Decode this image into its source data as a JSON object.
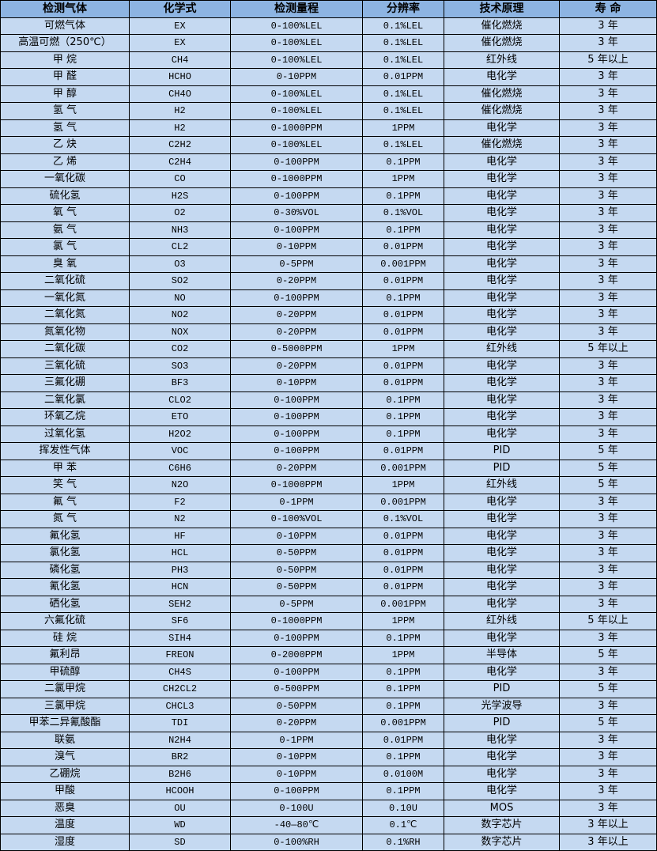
{
  "table": {
    "headers": [
      "检测气体",
      "化学式",
      "检测量程",
      "分辨率",
      "技术原理",
      "寿 命"
    ],
    "rows": [
      [
        "可燃气体",
        "EX",
        "0-100%LEL",
        "0.1%LEL",
        "催化燃烧",
        "3 年"
      ],
      [
        "高温可燃（250℃）",
        "EX",
        "0-100%LEL",
        "0.1%LEL",
        "催化燃烧",
        "3 年"
      ],
      [
        "甲 烷",
        "CH4",
        "0-100%LEL",
        "0.1%LEL",
        "红外线",
        "5 年以上"
      ],
      [
        "甲 醛",
        "HCHO",
        "0-10PPM",
        "0.01PPM",
        "电化学",
        "3 年"
      ],
      [
        "甲 醇",
        "CH4O",
        "0-100%LEL",
        "0.1%LEL",
        "催化燃烧",
        "3 年"
      ],
      [
        "氢 气",
        "H2",
        "0-100%LEL",
        "0.1%LEL",
        "催化燃烧",
        "3 年"
      ],
      [
        "氢 气",
        "H2",
        "0-1000PPM",
        "1PPM",
        "电化学",
        "3 年"
      ],
      [
        "乙 炔",
        "C2H2",
        "0-100%LEL",
        "0.1%LEL",
        "催化燃烧",
        "3 年"
      ],
      [
        "乙 烯",
        "C2H4",
        "0-100PPM",
        "0.1PPM",
        "电化学",
        "3 年"
      ],
      [
        "一氧化碳",
        "CO",
        "0-1000PPM",
        "1PPM",
        "电化学",
        "3 年"
      ],
      [
        "硫化氢",
        "H2S",
        "0-100PPM",
        "0.1PPM",
        "电化学",
        "3 年"
      ],
      [
        "氧 气",
        "O2",
        "0-30%VOL",
        "0.1%VOL",
        "电化学",
        "3 年"
      ],
      [
        "氨 气",
        "NH3",
        "0-100PPM",
        "0.1PPM",
        "电化学",
        "3 年"
      ],
      [
        "氯 气",
        "CL2",
        "0-10PPM",
        "0.01PPM",
        "电化学",
        "3 年"
      ],
      [
        "臭 氧",
        "O3",
        "0-5PPM",
        "0.001PPM",
        "电化学",
        "3 年"
      ],
      [
        "二氧化硫",
        "SO2",
        "0-20PPM",
        "0.01PPM",
        "电化学",
        "3 年"
      ],
      [
        "一氧化氮",
        "NO",
        "0-100PPM",
        "0.1PPM",
        "电化学",
        "3 年"
      ],
      [
        "二氧化氮",
        "NO2",
        "0-20PPM",
        "0.01PPM",
        "电化学",
        "3 年"
      ],
      [
        "氮氧化物",
        "NOX",
        "0-20PPM",
        "0.01PPM",
        "电化学",
        "3 年"
      ],
      [
        "二氧化碳",
        "CO2",
        "0-5000PPM",
        "1PPM",
        "红外线",
        "5 年以上"
      ],
      [
        "三氧化硫",
        "SO3",
        "0-20PPM",
        "0.01PPM",
        "电化学",
        "3 年"
      ],
      [
        "三氟化硼",
        "BF3",
        "0-10PPM",
        "0.01PPM",
        "电化学",
        "3 年"
      ],
      [
        "二氧化氯",
        "CLO2",
        "0-100PPM",
        "0.1PPM",
        "电化学",
        "3 年"
      ],
      [
        "环氧乙烷",
        "ETO",
        "0-100PPM",
        "0.1PPM",
        "电化学",
        "3 年"
      ],
      [
        "过氧化氢",
        "H2O2",
        "0-100PPM",
        "0.1PPM",
        "电化学",
        "3 年"
      ],
      [
        "挥发性气体",
        "VOC",
        "0-100PPM",
        "0.01PPM",
        "PID",
        "5 年"
      ],
      [
        "甲 苯",
        "C6H6",
        "0-20PPM",
        "0.001PPM",
        "PID",
        "5 年"
      ],
      [
        "笑 气",
        "N2O",
        "0-1000PPM",
        "1PPM",
        "红外线",
        "5 年"
      ],
      [
        "氟 气",
        "F2",
        "0-1PPM",
        "0.001PPM",
        "电化学",
        "3 年"
      ],
      [
        "氮 气",
        "N2",
        "0-100%VOL",
        "0.1%VOL",
        "电化学",
        "3 年"
      ],
      [
        "氟化氢",
        "HF",
        "0-10PPM",
        "0.01PPM",
        "电化学",
        "3 年"
      ],
      [
        "氯化氢",
        "HCL",
        "0-50PPM",
        "0.01PPM",
        "电化学",
        "3 年"
      ],
      [
        "磷化氢",
        "PH3",
        "0-50PPM",
        "0.01PPM",
        "电化学",
        "3 年"
      ],
      [
        "氰化氢",
        "HCN",
        "0-50PPM",
        "0.01PPM",
        "电化学",
        "3 年"
      ],
      [
        "硒化氢",
        "SEH2",
        "0-5PPM",
        "0.001PPM",
        "电化学",
        "3 年"
      ],
      [
        "六氟化硫",
        "SF6",
        "0-1000PPM",
        "1PPM",
        "红外线",
        "5 年以上"
      ],
      [
        "硅 烷",
        "SIH4",
        "0-100PPM",
        "0.1PPM",
        "电化学",
        "3 年"
      ],
      [
        "氟利昂",
        "FREON",
        "0-2000PPM",
        "1PPM",
        "半导体",
        "5 年"
      ],
      [
        "甲硫醇",
        "CH4S",
        "0-100PPM",
        "0.1PPM",
        "电化学",
        "3 年"
      ],
      [
        "二氯甲烷",
        "CH2CL2",
        "0-500PPM",
        "0.1PPM",
        "PID",
        "5 年"
      ],
      [
        "三氯甲烷",
        "CHCL3",
        "0-50PPM",
        "0.1PPM",
        "光学波导",
        "3 年"
      ],
      [
        "甲苯二异氰酸酯",
        "TDI",
        "0-20PPM",
        "0.001PPM",
        "PID",
        "5 年"
      ],
      [
        "联氨",
        "N2H4",
        "0-1PPM",
        "0.01PPM",
        "电化学",
        "3 年"
      ],
      [
        "溴气",
        "BR2",
        "0-10PPM",
        "0.1PPM",
        "电化学",
        "3 年"
      ],
      [
        "乙硼烷",
        "B2H6",
        "0-10PPM",
        "0.0100M",
        "电化学",
        "3 年"
      ],
      [
        "甲酸",
        "HCOOH",
        "0-100PPM",
        "0.1PPM",
        "电化学",
        "3 年"
      ],
      [
        "恶臭",
        "OU",
        "0-100U",
        "0.10U",
        "MOS",
        "3 年"
      ],
      [
        "温度",
        "WD",
        "-40—80℃",
        "0.1℃",
        "数字芯片",
        "3 年以上"
      ],
      [
        "湿度",
        "SD",
        "0-100%RH",
        "0.1%RH",
        "数字芯片",
        "3 年以上"
      ]
    ]
  },
  "colors": {
    "header_bg": "#8db4e2",
    "row_bg": "#c5d9f1",
    "border": "#000000"
  }
}
